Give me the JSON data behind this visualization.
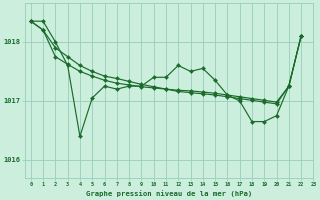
{
  "background_color": "#cceedd",
  "grid_color": "#99ccbb",
  "line_color": "#1a6b2a",
  "title": "Graphe pression niveau de la mer (hPa)",
  "xlim": [
    -0.5,
    23
  ],
  "ylim": [
    1015.7,
    1018.65
  ],
  "yticks": [
    1016,
    1017,
    1018
  ],
  "xticks": [
    0,
    1,
    2,
    3,
    4,
    5,
    6,
    7,
    8,
    9,
    10,
    11,
    12,
    13,
    14,
    15,
    16,
    17,
    18,
    19,
    20,
    21,
    22,
    23
  ],
  "s1": [
    1018.35,
    1018.35,
    1018.0,
    1017.6,
    1016.4,
    1017.05,
    1017.25,
    1017.2,
    1017.25,
    1017.25,
    1017.4,
    1017.4,
    1017.6,
    1017.5,
    1017.55,
    1017.35,
    1017.1,
    1017.0,
    1016.65,
    1016.65,
    1016.75,
    1017.25,
    1018.1
  ],
  "s2": [
    1018.35,
    1018.2,
    1017.9,
    1017.75,
    1017.6,
    1017.5,
    1017.42,
    1017.38,
    1017.33,
    1017.28,
    1017.24,
    1017.2,
    1017.16,
    1017.14,
    1017.12,
    1017.1,
    1017.07,
    1017.04,
    1017.01,
    1016.98,
    1016.95,
    1017.25,
    1018.1
  ],
  "s3": [
    1018.35,
    1018.2,
    1017.75,
    1017.62,
    1017.5,
    1017.42,
    1017.35,
    1017.3,
    1017.27,
    1017.24,
    1017.22,
    1017.2,
    1017.18,
    1017.17,
    1017.15,
    1017.13,
    1017.1,
    1017.07,
    1017.04,
    1017.01,
    1016.98,
    1017.25,
    1018.1
  ],
  "figsize": [
    3.2,
    2.0
  ],
  "dpi": 100
}
